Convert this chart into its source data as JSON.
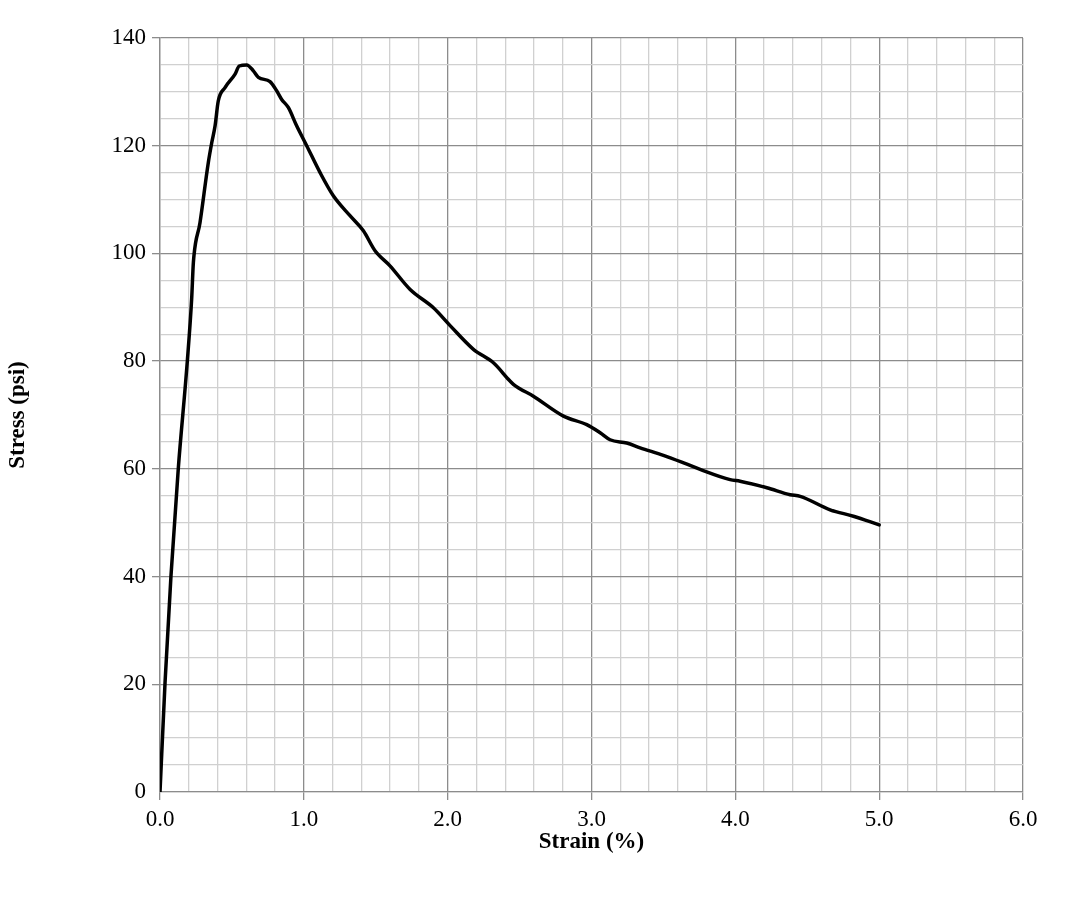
{
  "chart_data": {
    "type": "line",
    "xlabel": "Strain (%)",
    "ylabel": "Stress (psi)",
    "color": "#000000",
    "marker": "none",
    "grid": true,
    "legend": false,
    "x": [
      0,
      0.035,
      0.076,
      0.127,
      0.19,
      0.22,
      0.232,
      0.278,
      0.336,
      0.36,
      0.383,
      0.405,
      0.452,
      0.522,
      0.551,
      0.603,
      0.649,
      0.684,
      0.765,
      0.811,
      0.846,
      0.892,
      0.95,
      1.02,
      1.113,
      1.205,
      1.321,
      1.414,
      1.495,
      1.599,
      1.739,
      1.901,
      2.017,
      2.179,
      2.318,
      2.457,
      2.596,
      2.805,
      2.967,
      3.06,
      3.129,
      3.245,
      3.338,
      3.5,
      3.65,
      3.755,
      3.964,
      4.033,
      4.219,
      4.381,
      4.451,
      4.659,
      4.821,
      5.0
    ],
    "values": [
      0,
      20.3,
      40,
      60,
      80,
      91.5,
      98.3,
      105.7,
      116.9,
      120.6,
      123.7,
      128.3,
      130.8,
      133.3,
      134.8,
      135,
      133.9,
      132.7,
      131.9,
      130.2,
      128.6,
      127.1,
      123.7,
      120,
      115,
      110.7,
      107,
      104.2,
      100.5,
      97.7,
      93.3,
      89.9,
      86.6,
      82.2,
      79.7,
      75.7,
      73.5,
      69.8,
      68.2,
      66.7,
      65.4,
      64.8,
      63.9,
      62.5,
      61,
      59.9,
      58,
      57.7,
      56.5,
      55.2,
      54.9,
      52.4,
      51.2,
      49.6
    ],
    "xlim": [
      0,
      6
    ],
    "ylim": [
      0,
      140
    ],
    "xticks": [
      {
        "value": 0,
        "label": "0.0"
      },
      {
        "value": 0.2,
        "label": null
      },
      {
        "value": 0.4,
        "label": null
      },
      {
        "value": 0.6,
        "label": null
      },
      {
        "value": 0.8,
        "label": null
      },
      {
        "value": 1,
        "label": "1.0"
      },
      {
        "value": 1.2,
        "label": null
      },
      {
        "value": 1.4,
        "label": null
      },
      {
        "value": 1.6,
        "label": null
      },
      {
        "value": 1.8,
        "label": null
      },
      {
        "value": 2,
        "label": "2.0"
      },
      {
        "value": 2.2,
        "label": null
      },
      {
        "value": 2.4,
        "label": null
      },
      {
        "value": 2.6,
        "label": null
      },
      {
        "value": 2.8,
        "label": null
      },
      {
        "value": 3,
        "label": "3.0"
      },
      {
        "value": 3.2,
        "label": null
      },
      {
        "value": 3.4,
        "label": null
      },
      {
        "value": 3.6,
        "label": null
      },
      {
        "value": 3.8,
        "label": null
      },
      {
        "value": 4,
        "label": "4.0"
      },
      {
        "value": 4.2,
        "label": null
      },
      {
        "value": 4.4,
        "label": null
      },
      {
        "value": 4.6,
        "label": null
      },
      {
        "value": 4.8,
        "label": null
      },
      {
        "value": 5,
        "label": "5.0"
      },
      {
        "value": 5.2,
        "label": null
      },
      {
        "value": 5.4,
        "label": null
      },
      {
        "value": 5.6,
        "label": null
      },
      {
        "value": 5.8,
        "label": null
      },
      {
        "value": 6,
        "label": "6.0"
      }
    ],
    "yticks": [
      0,
      {
        "value": 5,
        "label": null
      },
      {
        "value": 10,
        "label": null
      },
      {
        "value": 15,
        "label": null
      },
      20,
      {
        "value": 25,
        "label": null
      },
      {
        "value": 30,
        "label": null
      },
      {
        "value": 35,
        "label": null
      },
      40,
      {
        "value": 45,
        "label": null
      },
      {
        "value": 50,
        "label": null
      },
      {
        "value": 55,
        "label": null
      },
      60,
      {
        "value": 65,
        "label": null
      },
      {
        "value": 70,
        "label": null
      },
      {
        "value": 75,
        "label": null
      },
      80,
      {
        "value": 85,
        "label": null
      },
      {
        "value": 90,
        "label": null
      },
      {
        "value": 95,
        "label": null
      },
      100,
      {
        "value": 105,
        "label": null
      },
      {
        "value": 110,
        "label": null
      },
      {
        "value": 115,
        "label": null
      },
      120,
      {
        "value": 125,
        "label": null
      },
      {
        "value": 130,
        "label": null
      },
      {
        "value": 135,
        "label": null
      },
      140
    ]
  }
}
